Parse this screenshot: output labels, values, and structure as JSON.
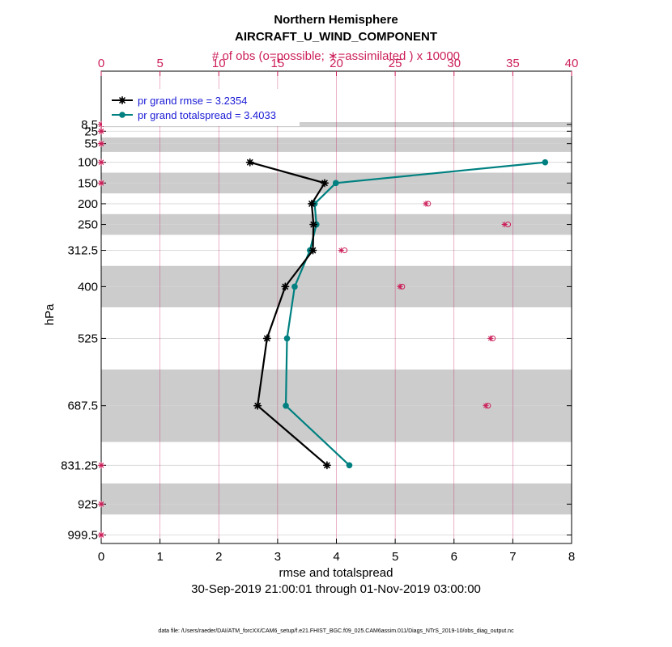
{
  "chart_data": {
    "type": "line",
    "title": "Northern Hemisphere",
    "subtitle": "AIRCRAFT_U_WIND_COMPONENT",
    "top_axis_label": "# of obs (o=possible; ∗=assimilated ) x 10000",
    "xlabel": "rmse and totalspread",
    "ylabel": "hPa",
    "date_range": "30-Sep-2019 21:00:01 through 01-Nov-2019 03:00:00",
    "footer": "data file: /Users/raeder/DAI/ATM_forcXX/CAM6_setup/f.e21.FHIST_BGC.f09_025.CAM6assim.011/Diags_NTrS_2019-10/obs_diag_output.nc",
    "xlim": [
      0,
      8
    ],
    "x_ticks": [
      0,
      1,
      2,
      3,
      4,
      5,
      6,
      7,
      8
    ],
    "x_tick_labels": [
      "0",
      "1",
      "2",
      "3",
      "4",
      "5",
      "6",
      "7",
      "8"
    ],
    "top_xlim": [
      0,
      40
    ],
    "top_ticks": [
      0,
      5,
      10,
      15,
      20,
      25,
      30,
      35,
      40
    ],
    "top_tick_labels": [
      "0",
      "5",
      "10",
      "15",
      "20",
      "25",
      "30",
      "35",
      "40"
    ],
    "ylim": [
      1020,
      -120
    ],
    "y_ticks": [
      8.5,
      25,
      55,
      100,
      150,
      200,
      250,
      312.5,
      400,
      525,
      687.5,
      831.25,
      925,
      999.5
    ],
    "y_tick_labels": [
      "8.5",
      "25",
      "55",
      "100",
      "150",
      "200",
      "250",
      "312.5",
      "400",
      "525",
      "687.5",
      "831.25",
      "925",
      "999.5"
    ],
    "layer_bands": [
      [
        3,
        15
      ],
      [
        40,
        75
      ],
      [
        125,
        175
      ],
      [
        225,
        275
      ],
      [
        350,
        450
      ],
      [
        600,
        775
      ],
      [
        875,
        950
      ]
    ],
    "levels": [
      100,
      150,
      200,
      250,
      312.5,
      400,
      525,
      687.5,
      831.25
    ],
    "series": [
      {
        "name": "pr grand rmse",
        "legend": "pr grand rmse = 3.2354",
        "color": "#000000",
        "marker": "star",
        "values": [
          2.53,
          3.8,
          3.58,
          3.61,
          3.6,
          3.13,
          2.82,
          2.66,
          3.84
        ]
      },
      {
        "name": "pr grand totalspread",
        "legend": "pr grand totalspread = 3.4033",
        "color": "#008080",
        "marker": "dot",
        "values": [
          7.55,
          3.99,
          3.63,
          3.66,
          3.55,
          3.29,
          3.16,
          3.14,
          4.22
        ]
      }
    ],
    "obs_color": "#cc1f5a",
    "obs_counts": {
      "levels": [
        200,
        250,
        312.5,
        400,
        525,
        687.5
      ],
      "possible": [
        27.8,
        34.6,
        20.7,
        25.6,
        33.3,
        32.9
      ],
      "assimilated": [
        27.6,
        34.3,
        20.4,
        25.4,
        33.1,
        32.7
      ]
    },
    "zero_obs_levels": [
      8.5,
      25,
      55,
      100,
      150,
      831.25,
      925,
      999.5
    ]
  }
}
